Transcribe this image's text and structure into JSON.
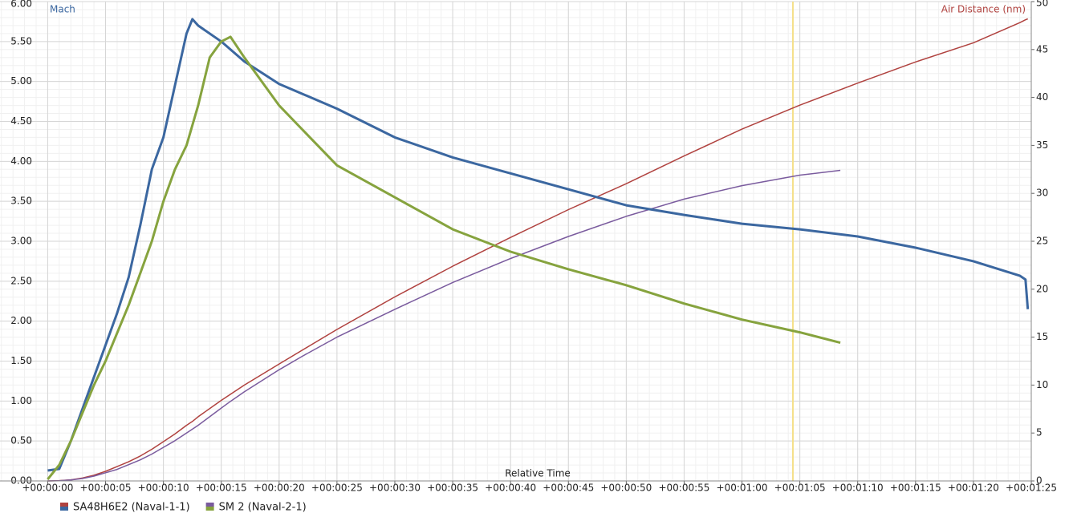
{
  "chart_data": {
    "type": "dual-line",
    "x_label": "Relative Time",
    "y_label": "Mach",
    "y2_label": "Air Distance (nm)",
    "xlim": [
      -1,
      85
    ],
    "ylim": [
      0,
      6
    ],
    "y2lim": [
      0,
      50
    ],
    "xticks": [
      {
        "value": 0,
        "label": "+00:00:00"
      },
      {
        "value": 5,
        "label": "+00:00:05"
      },
      {
        "value": 10,
        "label": "+00:00:10"
      },
      {
        "value": 15,
        "label": "+00:00:15"
      },
      {
        "value": 20,
        "label": "+00:00:20"
      },
      {
        "value": 25,
        "label": "+00:00:25"
      },
      {
        "value": 30,
        "label": "+00:00:30"
      },
      {
        "value": 35,
        "label": "+00:00:35"
      },
      {
        "value": 40,
        "label": "+00:00:40"
      },
      {
        "value": 45,
        "label": "+00:00:45"
      },
      {
        "value": 50,
        "label": "+00:00:50"
      },
      {
        "value": 55,
        "label": "+00:00:55"
      },
      {
        "value": 60,
        "label": "+00:01:00"
      },
      {
        "value": 65,
        "label": "+00:01:05"
      },
      {
        "value": 70,
        "label": "+00:01:10"
      },
      {
        "value": 75,
        "label": "+00:01:15"
      },
      {
        "value": 80,
        "label": "+00:01:20"
      },
      {
        "value": 85,
        "label": "+00:01:25"
      }
    ],
    "yticks": [
      {
        "value": 0,
        "label": "0.00"
      },
      {
        "value": 0.5,
        "label": "0.50"
      },
      {
        "value": 1,
        "label": "1.00"
      },
      {
        "value": 1.5,
        "label": "1.50"
      },
      {
        "value": 2,
        "label": "2.00"
      },
      {
        "value": 2.5,
        "label": "2.50"
      },
      {
        "value": 3,
        "label": "3.00"
      },
      {
        "value": 3.5,
        "label": "3.50"
      },
      {
        "value": 4,
        "label": "4.00"
      },
      {
        "value": 4.5,
        "label": "4.50"
      },
      {
        "value": 5,
        "label": "5.00"
      },
      {
        "value": 5.5,
        "label": "5.50"
      },
      {
        "value": 6,
        "label": "6.00"
      }
    ],
    "y2ticks": [
      0,
      5,
      10,
      15,
      20,
      25,
      30,
      35,
      40,
      45,
      50
    ],
    "grid": true,
    "minor_grid": true,
    "cursor_x": 64.4,
    "cursor_color": "#f5e08a",
    "objects": [
      {
        "name": "SA48H6E2 (Naval-1-1)",
        "x": [
          0,
          1,
          2,
          3,
          4,
          5,
          6,
          7,
          8,
          9,
          10,
          11,
          12,
          12.5,
          13,
          15,
          17,
          20,
          25,
          30,
          35,
          40,
          45,
          50,
          55,
          60,
          65,
          70,
          75,
          80,
          84,
          84.5,
          84.7
        ],
        "mach": {
          "color": "#3b67a0",
          "values": [
            0.13,
            0.15,
            0.5,
            0.9,
            1.3,
            1.7,
            2.1,
            2.55,
            3.2,
            3.9,
            4.3,
            4.95,
            5.6,
            5.78,
            5.7,
            5.5,
            5.25,
            4.97,
            4.66,
            4.3,
            4.05,
            3.85,
            3.65,
            3.45,
            3.33,
            3.22,
            3.15,
            3.06,
            2.92,
            2.75,
            2.57,
            2.52,
            2.15
          ]
        },
        "air_distance": {
          "color": "#b0423f",
          "values": [
            0,
            0.03,
            0.12,
            0.3,
            0.6,
            1.0,
            1.5,
            2.0,
            2.6,
            3.3,
            4.1,
            4.9,
            5.8,
            6.2,
            6.7,
            8.4,
            10.0,
            12.2,
            15.8,
            19.2,
            22.4,
            25.4,
            28.3,
            31.0,
            33.9,
            36.7,
            39.2,
            41.5,
            43.7,
            45.7,
            47.8,
            48.1,
            48.2
          ]
        }
      },
      {
        "name": "SM 2 (Naval-2-1)",
        "x": [
          0,
          1,
          2,
          3,
          4,
          5,
          6,
          7,
          8,
          9,
          10,
          11,
          12,
          13,
          14,
          15,
          15.8,
          17,
          20,
          22,
          25,
          30,
          35,
          40,
          45,
          50,
          55,
          60,
          65,
          68.5
        ],
        "mach": {
          "color": "#86a33e",
          "values": [
            0.02,
            0.2,
            0.5,
            0.85,
            1.2,
            1.5,
            1.85,
            2.2,
            2.6,
            3.0,
            3.5,
            3.9,
            4.2,
            4.7,
            5.3,
            5.5,
            5.56,
            5.3,
            4.7,
            4.4,
            3.95,
            3.55,
            3.15,
            2.87,
            2.65,
            2.45,
            2.22,
            2.02,
            1.86,
            1.73
          ]
        },
        "air_distance": {
          "color": "#7a5b9e",
          "values": [
            0,
            0.02,
            0.1,
            0.25,
            0.5,
            0.85,
            1.2,
            1.7,
            2.2,
            2.8,
            3.5,
            4.2,
            5.0,
            5.8,
            6.7,
            7.6,
            8.3,
            9.3,
            11.6,
            13.0,
            15.0,
            17.9,
            20.7,
            23.2,
            25.5,
            27.6,
            29.4,
            30.8,
            31.9,
            32.4
          ]
        }
      }
    ]
  }
}
